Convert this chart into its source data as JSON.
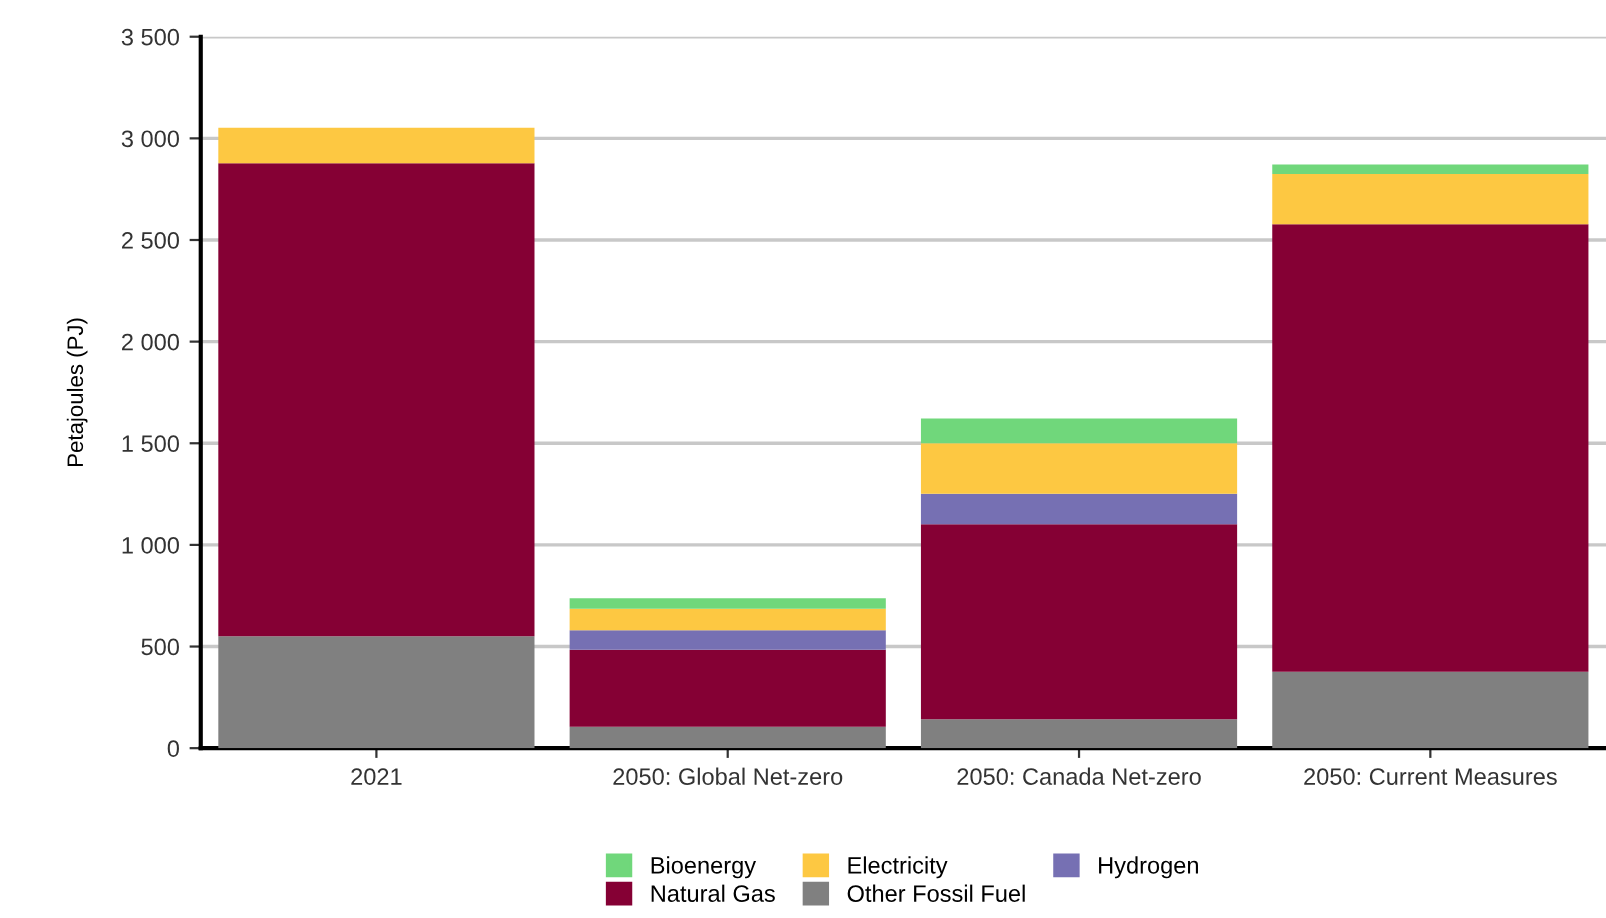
{
  "chart_data": {
    "type": "bar",
    "stacked": true,
    "ylabel": "Petajoules (PJ)",
    "categories": [
      "2021",
      "2050: Global Net-zero",
      "2050: Canada Net-zero",
      "2050: Current Measures"
    ],
    "series": [
      {
        "name": "Other Fossil Fuel",
        "color": "#808080",
        "values": [
          550,
          105,
          142,
          376
        ]
      },
      {
        "name": "Natural Gas",
        "color": "#850034",
        "values": [
          2327,
          379,
          959,
          2201
        ]
      },
      {
        "name": "Hydrogen",
        "color": "#7670b3",
        "values": [
          0,
          96,
          151,
          0
        ]
      },
      {
        "name": "Electricity",
        "color": "#fdc842",
        "values": [
          175,
          106,
          248,
          248
        ]
      },
      {
        "name": "Bioenergy",
        "color": "#70d77b",
        "values": [
          0,
          52,
          122,
          46
        ]
      }
    ],
    "ylim": [
      0,
      3500
    ],
    "yticks": [
      0,
      500,
      {
        "value": 1000,
        "label": "1 000"
      },
      {
        "value": 1500,
        "label": "1 500"
      },
      {
        "value": 2000,
        "label": "2 000"
      },
      {
        "value": 2500,
        "label": "2 500"
      },
      {
        "value": 3000,
        "label": "3 000"
      },
      {
        "value": 3500,
        "label": "3 500"
      }
    ],
    "grid": "y",
    "legend": "bottom"
  }
}
